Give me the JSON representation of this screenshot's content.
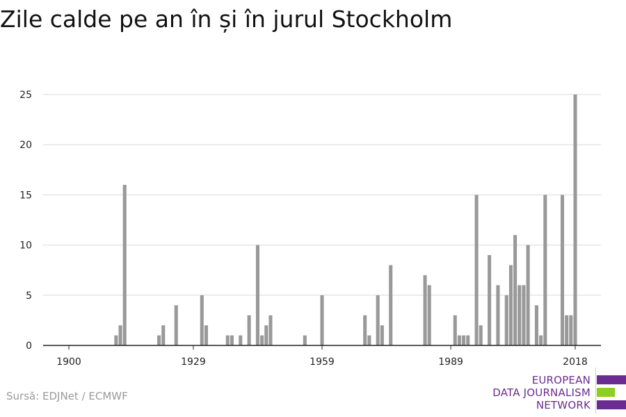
{
  "title": "Zile calde pe an în și în jurul Stockholm",
  "source": "Sursă: EDJNet / ECMWF",
  "logo": {
    "lines": [
      "EUROPEAN",
      "DATA JOURNALISM",
      "NETWORK"
    ],
    "colors": [
      "#6b2c91",
      "#8ccf1f",
      "#6b2c91"
    ]
  },
  "chart_data": {
    "type": "bar",
    "title": "Zile calde pe an în și în jurul Stockholm",
    "xlabel": "",
    "ylabel": "",
    "x_tick_labels": [
      "1900",
      "1929",
      "1959",
      "1989",
      "2018"
    ],
    "y_tick_labels": [
      "0",
      "5",
      "10",
      "15",
      "20",
      "25"
    ],
    "xlim": [
      1894,
      2024
    ],
    "ylim": [
      0,
      25
    ],
    "grid": true,
    "bar_color": "#999999",
    "categories": [
      1900,
      1901,
      1902,
      1903,
      1904,
      1905,
      1906,
      1907,
      1908,
      1909,
      1910,
      1911,
      1912,
      1913,
      1914,
      1915,
      1916,
      1917,
      1918,
      1919,
      1920,
      1921,
      1922,
      1923,
      1924,
      1925,
      1926,
      1927,
      1928,
      1929,
      1930,
      1931,
      1932,
      1933,
      1934,
      1935,
      1936,
      1937,
      1938,
      1939,
      1940,
      1941,
      1942,
      1943,
      1944,
      1945,
      1946,
      1947,
      1948,
      1949,
      1950,
      1951,
      1952,
      1953,
      1954,
      1955,
      1956,
      1957,
      1958,
      1959,
      1960,
      1961,
      1962,
      1963,
      1964,
      1965,
      1966,
      1967,
      1968,
      1969,
      1970,
      1971,
      1972,
      1973,
      1974,
      1975,
      1976,
      1977,
      1978,
      1979,
      1980,
      1981,
      1982,
      1983,
      1984,
      1985,
      1986,
      1987,
      1988,
      1989,
      1990,
      1991,
      1992,
      1993,
      1994,
      1995,
      1996,
      1997,
      1998,
      1999,
      2000,
      2001,
      2002,
      2003,
      2004,
      2005,
      2006,
      2007,
      2008,
      2009,
      2010,
      2011,
      2012,
      2013,
      2014,
      2015,
      2016,
      2017,
      2018
    ],
    "values": [
      0,
      0,
      0,
      0,
      0,
      0,
      0,
      0,
      0,
      0,
      0,
      1,
      2,
      16,
      0,
      0,
      0,
      0,
      0,
      0,
      0,
      1,
      2,
      0,
      0,
      4,
      0,
      0,
      0,
      0,
      0,
      5,
      2,
      0,
      0,
      0,
      0,
      1,
      1,
      0,
      1,
      0,
      3,
      0,
      10,
      1,
      2,
      3,
      0,
      0,
      0,
      0,
      0,
      0,
      0,
      1,
      0,
      0,
      0,
      5,
      0,
      0,
      0,
      0,
      0,
      0,
      0,
      0,
      0,
      3,
      1,
      0,
      5,
      2,
      0,
      8,
      0,
      0,
      0,
      0,
      0,
      0,
      0,
      7,
      6,
      0,
      0,
      0,
      0,
      0,
      3,
      1,
      1,
      1,
      0,
      15,
      2,
      0,
      9,
      0,
      6,
      0,
      5,
      8,
      11,
      6,
      6,
      10,
      0,
      4,
      1,
      15,
      0,
      0,
      0,
      15,
      3,
      3,
      25
    ]
  }
}
